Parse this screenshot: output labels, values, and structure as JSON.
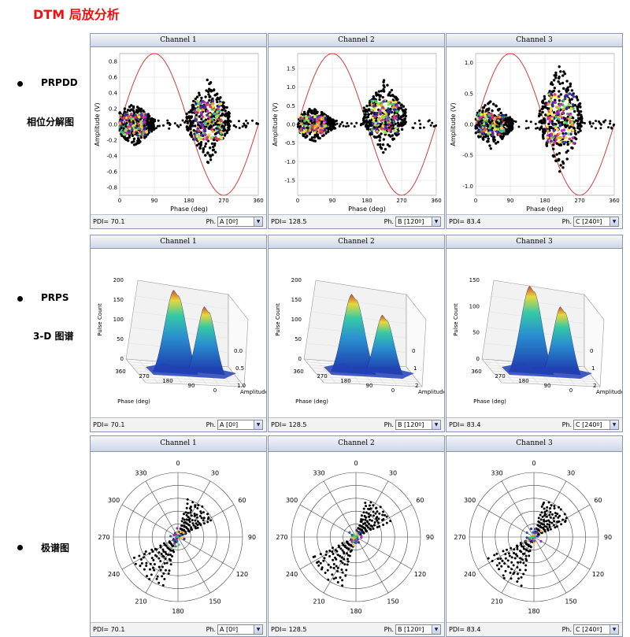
{
  "page_title": "DTM 局放分析",
  "sections": [
    {
      "label1": "PRPDD",
      "label2": "相位分解图"
    },
    {
      "label1": "PRPS",
      "label2": "3-D 图谱"
    },
    {
      "label1": "极谱图",
      "label2": ""
    }
  ],
  "channels": [
    {
      "name": "Channel 1",
      "pdi_label": "PDI=",
      "pdi": "70.1",
      "ph_label": "Ph.",
      "phase": "A [0º]"
    },
    {
      "name": "Channel 2",
      "pdi_label": "PDI=",
      "pdi": "128.5",
      "ph_label": "Ph.",
      "phase": "B [120º]"
    },
    {
      "name": "Channel 3",
      "pdi_label": "PDI=",
      "pdi": "83.4",
      "ph_label": "Ph.",
      "phase": "C [240º]"
    }
  ],
  "colors": {
    "title": "#ee1111",
    "sine": "#d83a3a",
    "scatter": "#000000"
  },
  "chart_data": [
    {
      "type": "scatter",
      "chart": "prpd",
      "channel": "Channel 1",
      "xlabel": "Phase (deg)",
      "ylabel": "Amplitude (V)",
      "xlim": [
        0,
        360
      ],
      "ylim": [
        -0.9,
        0.9
      ],
      "xticks": [
        0,
        90,
        180,
        270,
        360
      ],
      "yticks": [
        "0.8",
        "0.6",
        "0.4",
        "0.2",
        "0.0",
        "-0.2",
        "-0.4",
        "-0.6",
        "-0.8"
      ],
      "clusters": [
        [
          35,
          0.0,
          0.3
        ],
        [
          230,
          0.05,
          0.55
        ]
      ],
      "sine_amplitude": 0.9,
      "grid": true
    },
    {
      "type": "scatter",
      "chart": "prpd",
      "channel": "Channel 2",
      "xlabel": "Phase (deg)",
      "ylabel": "Amplitude (V)",
      "xlim": [
        0,
        360
      ],
      "ylim": [
        -1.9,
        1.9
      ],
      "xticks": [
        0,
        90,
        180,
        270,
        360
      ],
      "yticks": [
        "1.5",
        "1.0",
        "0.5",
        "0.0",
        "-0.5",
        "-1.0",
        "-1.5"
      ],
      "clusters": [
        [
          40,
          0.0,
          0.5
        ],
        [
          225,
          0.2,
          1.0
        ]
      ],
      "sine_amplitude": 1.9,
      "grid": true
    },
    {
      "type": "scatter",
      "chart": "prpd",
      "channel": "Channel 3",
      "xlabel": "Phase (deg)",
      "ylabel": "Amplitude (V)",
      "xlim": [
        0,
        360
      ],
      "ylim": [
        -1.15,
        1.15
      ],
      "xticks": [
        0,
        90,
        180,
        270,
        360
      ],
      "yticks": [
        "1.0",
        "0.5",
        "0.0",
        "-0.5",
        "-1.0"
      ],
      "clusters": [
        [
          40,
          0.0,
          0.4
        ],
        [
          220,
          0.1,
          0.9
        ]
      ],
      "sine_amplitude": 1.15,
      "grid": true
    },
    {
      "type": "surface",
      "chart": "prps",
      "channel": "Channel 1",
      "zlabel": "Pulse Count",
      "xlabel": "Phase (deg)",
      "ylabel": "Amplitude (V)",
      "zticks": [
        "200",
        "150",
        "100",
        "50",
        "0"
      ],
      "xticks": [
        "360",
        "270",
        "180",
        "90",
        "0"
      ],
      "yticks": [
        "0.0",
        "0.5",
        "1.0"
      ],
      "peaks": [
        [
          0.42,
          0.9
        ],
        [
          0.72,
          0.7
        ]
      ]
    },
    {
      "type": "surface",
      "chart": "prps",
      "channel": "Channel 2",
      "zlabel": "Pulse Count",
      "xlabel": "Phase (deg)",
      "ylabel": "Amplitude (V)",
      "zticks": [
        "200",
        "150",
        "100",
        "50",
        "0"
      ],
      "xticks": [
        "360",
        "270",
        "180",
        "90",
        "0"
      ],
      "yticks": [
        "0",
        "1",
        "2"
      ],
      "peaks": [
        [
          0.42,
          0.85
        ],
        [
          0.72,
          0.6
        ]
      ]
    },
    {
      "type": "surface",
      "chart": "prps",
      "channel": "Channel 3",
      "zlabel": "Pulse Count",
      "xlabel": "Phase (deg)",
      "ylabel": "Amplitude (V)",
      "zticks": [
        "150",
        "100",
        "50",
        "0"
      ],
      "xticks": [
        "360",
        "270",
        "180",
        "90",
        "0"
      ],
      "yticks": [
        "0",
        "1",
        "2"
      ],
      "peaks": [
        [
          0.42,
          0.95
        ],
        [
          0.72,
          0.7
        ]
      ]
    },
    {
      "type": "polar",
      "chart": "polar",
      "channel": "Channel 1",
      "angle_ticks": [
        "0",
        "30",
        "60",
        "90",
        "120",
        "150",
        "180",
        "210",
        "240",
        "270",
        "300",
        "330"
      ]
    },
    {
      "type": "polar",
      "chart": "polar",
      "channel": "Channel 2",
      "angle_ticks": [
        "0",
        "30",
        "60",
        "90",
        "120",
        "150",
        "180",
        "210",
        "240",
        "270",
        "300",
        "330"
      ]
    },
    {
      "type": "polar",
      "chart": "polar",
      "channel": "Channel 3",
      "angle_ticks": [
        "0",
        "30",
        "60",
        "90",
        "120",
        "150",
        "180",
        "210",
        "240",
        "270",
        "300",
        "330"
      ]
    }
  ]
}
